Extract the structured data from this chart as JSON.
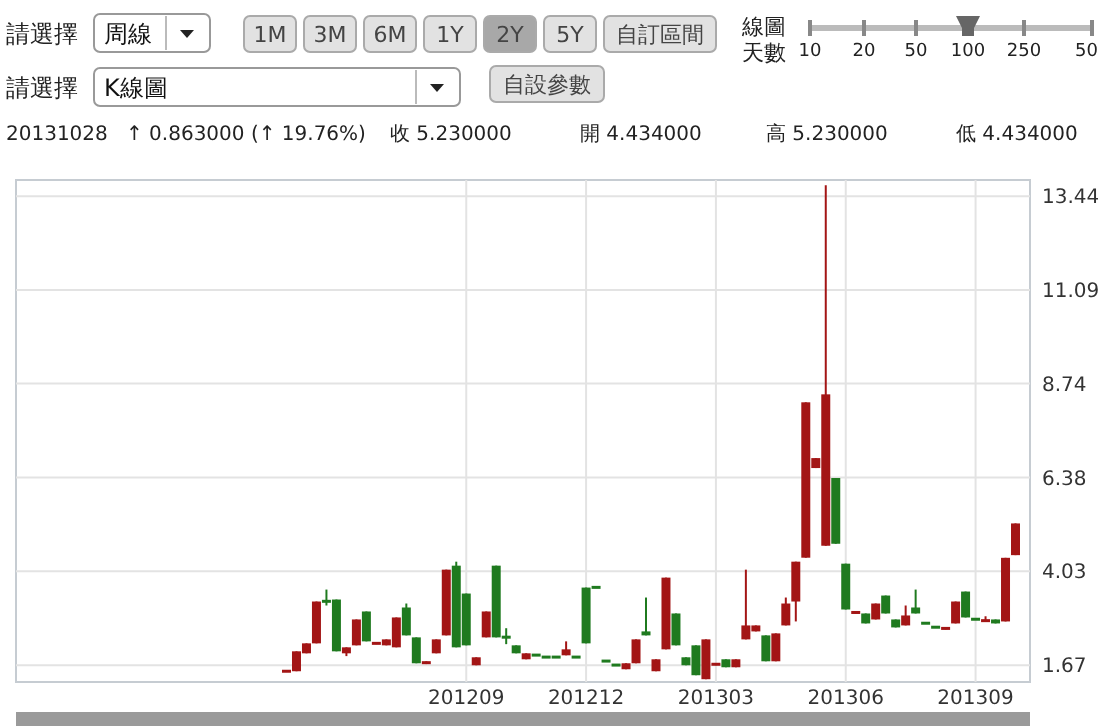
{
  "chart_data": {
    "type": "candlestick",
    "annotations": [
      "請選擇",
      "周線",
      "1M",
      "3M",
      "6M",
      "1Y",
      "2Y",
      "5Y",
      "自訂區間",
      "線圖",
      "天數",
      "10",
      "20",
      "50",
      "100",
      "250",
      "50",
      "請選擇",
      "K線圖",
      "自設參數",
      "20131028",
      "↑ 0.863000 (↑ 19.76%)",
      "收 5.230000",
      "開 4.434000",
      "高 5.230000",
      "低 4.434000"
    ],
    "categories": [
      null,
      null,
      null,
      null,
      null,
      null,
      null,
      null,
      null,
      null,
      null,
      null,
      null,
      null,
      null,
      null,
      null,
      null,
      "201209",
      null,
      null,
      null,
      null,
      null,
      null,
      null,
      null,
      null,
      null,
      null,
      "201212",
      null,
      null,
      null,
      null,
      null,
      null,
      null,
      null,
      null,
      null,
      null,
      null,
      "201303",
      null,
      null,
      null,
      null,
      null,
      null,
      null,
      null,
      null,
      null,
      null,
      null,
      "201306",
      null,
      null,
      null,
      null,
      null,
      null,
      null,
      null,
      null,
      null,
      null,
      null,
      "201309",
      null,
      null,
      null,
      null
    ],
    "ohlc": [
      [
        1.52,
        1.55,
        1.5,
        1.52
      ],
      [
        1.52,
        2.02,
        1.52,
        2.02
      ],
      [
        1.97,
        2.22,
        1.97,
        2.22
      ],
      [
        2.22,
        3.27,
        2.22,
        3.27
      ],
      [
        3.3,
        3.57,
        3.17,
        3.25
      ],
      [
        3.32,
        3.32,
        2.02,
        2.02
      ],
      [
        1.97,
        2.12,
        1.9,
        2.12
      ],
      [
        2.17,
        2.82,
        2.17,
        2.82
      ],
      [
        3.02,
        3.02,
        2.27,
        2.27
      ],
      [
        2.22,
        2.25,
        2.2,
        2.22
      ],
      [
        2.17,
        2.32,
        2.17,
        2.32
      ],
      [
        2.12,
        2.87,
        2.12,
        2.87
      ],
      [
        3.12,
        3.22,
        2.42,
        2.42
      ],
      [
        2.37,
        2.37,
        1.72,
        1.72
      ],
      [
        1.7,
        1.77,
        1.7,
        1.77
      ],
      [
        1.97,
        2.32,
        1.97,
        2.32
      ],
      [
        2.42,
        4.07,
        2.42,
        4.07
      ],
      [
        4.17,
        4.27,
        2.12,
        2.12
      ],
      [
        3.47,
        3.47,
        2.17,
        2.17
      ],
      [
        1.67,
        1.87,
        1.67,
        1.87
      ],
      [
        2.37,
        3.02,
        2.37,
        3.02
      ],
      [
        4.17,
        4.17,
        2.37,
        2.37
      ],
      [
        2.4,
        2.6,
        2.2,
        2.35
      ],
      [
        2.17,
        2.17,
        1.97,
        1.97
      ],
      [
        1.82,
        1.97,
        1.82,
        1.97
      ],
      [
        1.93,
        1.93,
        1.92,
        1.92
      ],
      [
        1.88,
        1.88,
        1.87,
        1.87
      ],
      [
        1.88,
        1.88,
        1.87,
        1.87
      ],
      [
        1.92,
        2.27,
        1.92,
        2.07
      ],
      [
        1.88,
        1.88,
        1.87,
        1.87
      ],
      [
        3.62,
        3.62,
        2.22,
        2.22
      ],
      [
        3.63,
        3.63,
        3.62,
        3.62
      ],
      [
        1.78,
        1.78,
        1.77,
        1.77
      ],
      [
        1.68,
        1.68,
        1.67,
        1.67
      ],
      [
        1.57,
        1.72,
        1.57,
        1.72
      ],
      [
        1.72,
        2.32,
        1.72,
        2.32
      ],
      [
        2.52,
        3.37,
        2.42,
        2.42
      ],
      [
        1.52,
        1.82,
        1.52,
        1.82
      ],
      [
        2.07,
        3.87,
        2.07,
        3.87
      ],
      [
        2.97,
        2.97,
        2.17,
        2.17
      ],
      [
        1.87,
        1.87,
        1.67,
        1.67
      ],
      [
        2.17,
        2.17,
        1.42,
        1.42
      ],
      [
        1.32,
        2.32,
        1.32,
        2.32
      ],
      [
        1.67,
        1.72,
        1.67,
        1.72
      ],
      [
        1.82,
        1.82,
        1.62,
        1.62
      ],
      [
        1.62,
        1.82,
        1.62,
        1.82
      ],
      [
        2.32,
        4.07,
        2.32,
        2.67
      ],
      [
        2.52,
        2.67,
        2.52,
        2.67
      ],
      [
        2.42,
        2.42,
        1.77,
        1.77
      ],
      [
        1.77,
        2.47,
        1.77,
        2.47
      ],
      [
        2.67,
        3.37,
        2.67,
        3.22
      ],
      [
        3.27,
        4.27,
        2.77,
        4.27
      ],
      [
        4.37,
        8.27,
        4.37,
        8.27
      ],
      [
        6.62,
        6.87,
        6.62,
        6.87
      ],
      [
        4.67,
        13.72,
        4.67,
        8.47
      ],
      [
        6.37,
        6.37,
        4.72,
        4.72
      ],
      [
        4.22,
        4.22,
        3.07,
        3.07
      ],
      [
        2.97,
        3.02,
        2.97,
        3.02
      ],
      [
        2.97,
        2.97,
        2.72,
        2.72
      ],
      [
        2.82,
        3.22,
        2.82,
        3.22
      ],
      [
        3.42,
        3.42,
        2.97,
        2.97
      ],
      [
        2.82,
        2.82,
        2.62,
        2.62
      ],
      [
        2.67,
        3.17,
        2.67,
        2.92
      ],
      [
        3.12,
        3.57,
        2.97,
        2.97
      ],
      [
        2.73,
        2.73,
        2.72,
        2.72
      ],
      [
        2.63,
        2.63,
        2.62,
        2.62
      ],
      [
        2.57,
        2.62,
        2.57,
        2.62
      ],
      [
        2.72,
        3.27,
        2.72,
        3.27
      ],
      [
        3.52,
        3.52,
        2.87,
        2.87
      ],
      [
        2.83,
        2.83,
        2.82,
        2.82
      ],
      [
        2.78,
        2.9,
        2.78,
        2.8
      ],
      [
        2.82,
        2.82,
        2.72,
        2.72
      ],
      [
        2.77,
        4.367,
        2.77,
        4.367
      ],
      [
        4.434,
        5.23,
        4.434,
        5.23
      ]
    ],
    "ylim": [
      1.25,
      13.85
    ],
    "yticks": [
      1.67,
      4.03,
      6.38,
      8.74,
      11.09,
      13.44
    ],
    "grid": true
  }
}
